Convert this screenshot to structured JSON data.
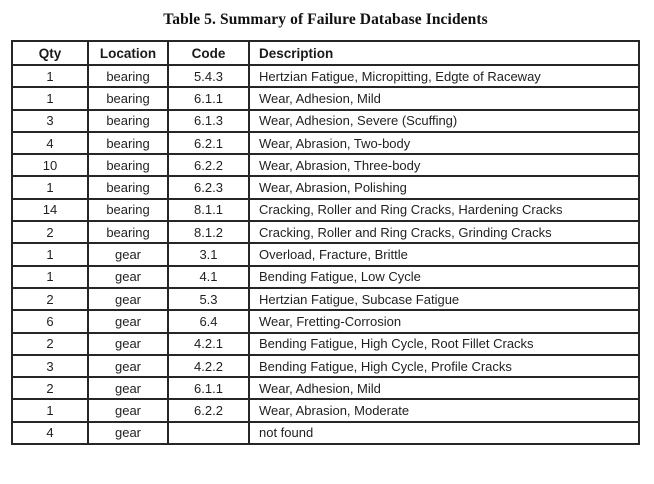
{
  "title": "Table 5. Summary of Failure Database Incidents",
  "colors": {
    "text": "#1f1f1f",
    "border": "#262626",
    "background": "#ffffff"
  },
  "table": {
    "headers": [
      "Qty",
      "Location",
      "Code",
      "Description"
    ],
    "rows": [
      [
        "1",
        "bearing",
        "5.4.3",
        "Hertzian Fatigue, Micropitting, Edgte of Raceway"
      ],
      [
        "1",
        "bearing",
        "6.1.1",
        "Wear, Adhesion, Mild"
      ],
      [
        "3",
        "bearing",
        "6.1.3",
        "Wear, Adhesion, Severe (Scuffing)"
      ],
      [
        "4",
        "bearing",
        "6.2.1",
        "Wear, Abrasion, Two-body"
      ],
      [
        "10",
        "bearing",
        "6.2.2",
        "Wear, Abrasion, Three-body"
      ],
      [
        "1",
        "bearing",
        "6.2.3",
        "Wear, Abrasion, Polishing"
      ],
      [
        "14",
        "bearing",
        "8.1.1",
        "Cracking, Roller and Ring Cracks, Hardening Cracks"
      ],
      [
        "2",
        "bearing",
        "8.1.2",
        "Cracking, Roller and Ring Cracks, Grinding Cracks"
      ],
      [
        "1",
        "gear",
        "3.1",
        "Overload, Fracture, Brittle"
      ],
      [
        "1",
        "gear",
        "4.1",
        "Bending Fatigue, Low Cycle"
      ],
      [
        "2",
        "gear",
        "5.3",
        "Hertzian Fatigue, Subcase Fatigue"
      ],
      [
        "6",
        "gear",
        "6.4",
        "Wear, Fretting-Corrosion"
      ],
      [
        "2",
        "gear",
        "4.2.1",
        "Bending Fatigue, High Cycle, Root Fillet Cracks"
      ],
      [
        "3",
        "gear",
        "4.2.2",
        "Bending Fatigue, High Cycle, Profile Cracks"
      ],
      [
        "2",
        "gear",
        "6.1.1",
        "Wear, Adhesion, Mild"
      ],
      [
        "1",
        "gear",
        "6.2.2",
        "Wear, Abrasion, Moderate"
      ],
      [
        "4",
        "gear",
        "",
        "not found"
      ]
    ]
  }
}
